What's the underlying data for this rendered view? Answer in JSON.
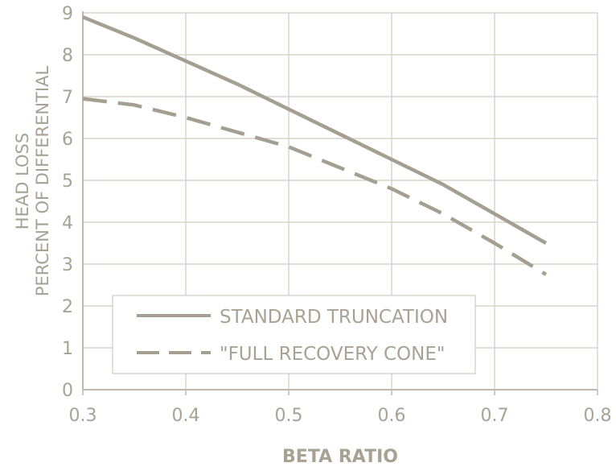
{
  "chart_data": {
    "type": "line",
    "title": "",
    "xlabel": "BETA RATIO",
    "ylabel_lines": [
      "HEAD LOSS",
      "PERCENT OF DIFFERENTIAL"
    ],
    "xlim": [
      0.3,
      0.8
    ],
    "ylim": [
      0,
      9
    ],
    "x_ticks": [
      "0.3",
      "0.4",
      "0.5",
      "0.6",
      "0.7",
      "0.8"
    ],
    "y_ticks": [
      "0",
      "1",
      "2",
      "3",
      "4",
      "5",
      "6",
      "7",
      "8",
      "9"
    ],
    "grid": true,
    "legend_position": "bottom-left",
    "series": [
      {
        "name": "STANDARD TRUNCATION",
        "style": "solid",
        "color": "#a59f91",
        "x": [
          0.3,
          0.35,
          0.4,
          0.45,
          0.5,
          0.55,
          0.6,
          0.65,
          0.7,
          0.75
        ],
        "y": [
          8.9,
          8.4,
          7.85,
          7.3,
          6.7,
          6.1,
          5.5,
          4.9,
          4.2,
          3.5
        ]
      },
      {
        "name": "\"FULL RECOVERY CONE\"",
        "style": "dashed",
        "color": "#a59f91",
        "x": [
          0.3,
          0.35,
          0.4,
          0.45,
          0.5,
          0.55,
          0.6,
          0.65,
          0.7,
          0.75
        ],
        "y": [
          6.95,
          6.8,
          6.5,
          6.15,
          5.8,
          5.3,
          4.8,
          4.2,
          3.5,
          2.75
        ]
      }
    ]
  },
  "colors": {
    "axis": "#bdb9ae",
    "grid": "#d0ccc2",
    "text": "#a8a293",
    "background": "#ffffff"
  }
}
